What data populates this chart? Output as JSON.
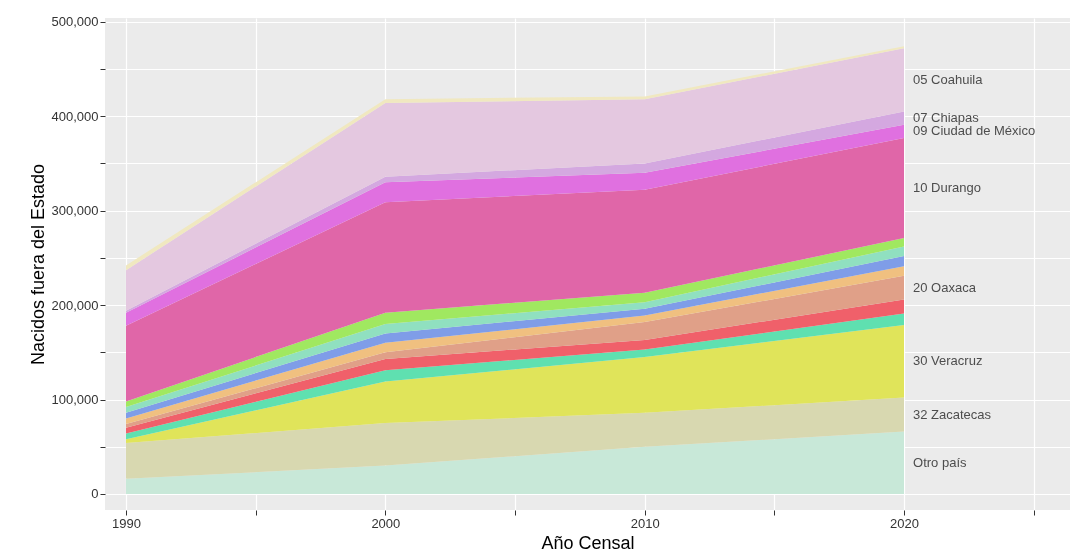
{
  "chart_data": {
    "type": "area",
    "stacked": true,
    "xlabel": "Año Censal",
    "ylabel": "Nacidos fuera del Estado",
    "x": [
      1990,
      2000,
      2010,
      2020
    ],
    "xlim": [
      1989.19,
      2026.4
    ],
    "xticks": [
      1990,
      {
        "value": 1995,
        "label": null
      },
      2000,
      {
        "value": 2005,
        "label": null
      },
      2010,
      {
        "value": 2015,
        "label": null
      },
      2020,
      {
        "value": 2025,
        "label": null
      }
    ],
    "ylim": [
      -17000,
      504000
    ],
    "yticks": [
      {
        "value": 0,
        "label": "0"
      },
      {
        "value": 50000,
        "label": null
      },
      {
        "value": 100000,
        "label": "100,000"
      },
      {
        "value": 150000,
        "label": null
      },
      {
        "value": 200000,
        "label": "200,000"
      },
      {
        "value": 250000,
        "label": null
      },
      {
        "value": 300000,
        "label": "300,000"
      },
      {
        "value": 350000,
        "label": null
      },
      {
        "value": 400000,
        "label": "400,000"
      },
      {
        "value": 450000,
        "label": null
      },
      {
        "value": 500000,
        "label": "500,000"
      }
    ],
    "grid": true,
    "series": [
      {
        "name": "Otro país",
        "color": "#c8e8d8",
        "values": [
          16000,
          30000,
          50000,
          66000
        ]
      },
      {
        "name": "32 Zacatecas",
        "color": "#d8d8b0",
        "values": [
          38000,
          45000,
          36000,
          36000
        ]
      },
      {
        "name": "30 Veracruz",
        "color": "#e0e45a",
        "values": [
          4000,
          44000,
          59000,
          77000
        ]
      },
      {
        "color": "#5fe0b0",
        "values": [
          6000,
          12000,
          8000,
          12000
        ]
      },
      {
        "color": "#f0606a",
        "values": [
          6000,
          12000,
          10000,
          15000
        ]
      },
      {
        "name": "20 Oaxaca",
        "color": "#e0a088",
        "values": [
          4000,
          7000,
          19000,
          25000
        ]
      },
      {
        "color": "#f0c080",
        "values": [
          6000,
          10000,
          7000,
          10000
        ]
      },
      {
        "color": "#7f9de8",
        "values": [
          6000,
          10000,
          7000,
          11000
        ]
      },
      {
        "color": "#90e0c0",
        "values": [
          6000,
          10000,
          7000,
          10000
        ]
      },
      {
        "color": "#a0e860",
        "values": [
          6000,
          12000,
          10000,
          9000
        ]
      },
      {
        "name": "10 Durango",
        "color": "#e066a8",
        "values": [
          80000,
          117000,
          109000,
          106000
        ]
      },
      {
        "name": "09 Ciudad de México",
        "color": "#e070e0",
        "values": [
          14000,
          21000,
          18000,
          14000
        ]
      },
      {
        "name": "07 Chiapas",
        "color": "#d4a8e0",
        "values": [
          2000,
          6000,
          10000,
          14000
        ]
      },
      {
        "name": "05 Coahuila",
        "color": "#e4c8e0",
        "values": [
          43000,
          78000,
          68000,
          67000
        ]
      },
      {
        "color": "#f0e8c0",
        "values": [
          5000,
          4000,
          3000,
          2000
        ]
      }
    ]
  }
}
